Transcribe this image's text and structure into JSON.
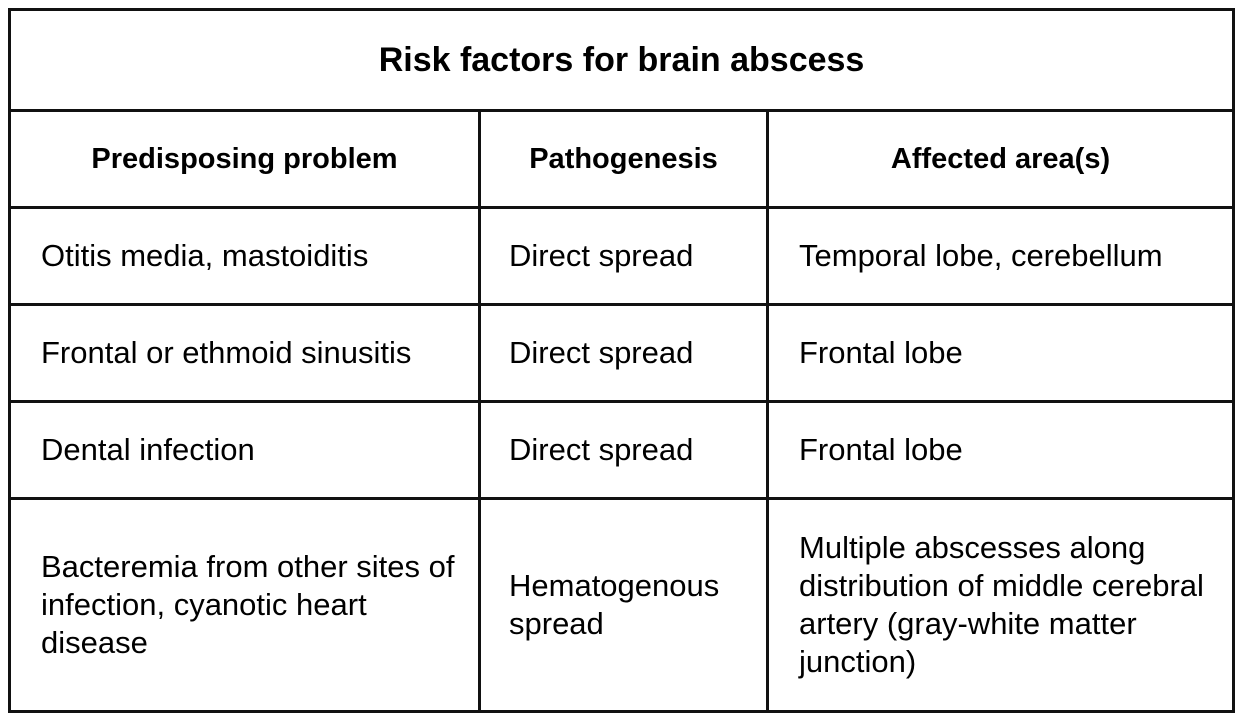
{
  "table": {
    "title": "Risk factors for brain abscess",
    "headers": [
      "Predisposing problem",
      "Pathogenesis",
      "Affected area(s)"
    ],
    "rows": [
      [
        "Otitis media, mastoiditis",
        "Direct spread",
        "Temporal lobe, cerebellum"
      ],
      [
        "Frontal or ethmoid sinusitis",
        "Direct spread",
        "Frontal lobe"
      ],
      [
        "Dental infection",
        "Direct spread",
        "Frontal lobe"
      ],
      [
        "Bacteremia from other sites of infection, cyanotic heart disease",
        "Hematogenous spread",
        "Multiple abscesses along distribution of middle cerebral artery (gray-white matter junction)"
      ]
    ]
  }
}
